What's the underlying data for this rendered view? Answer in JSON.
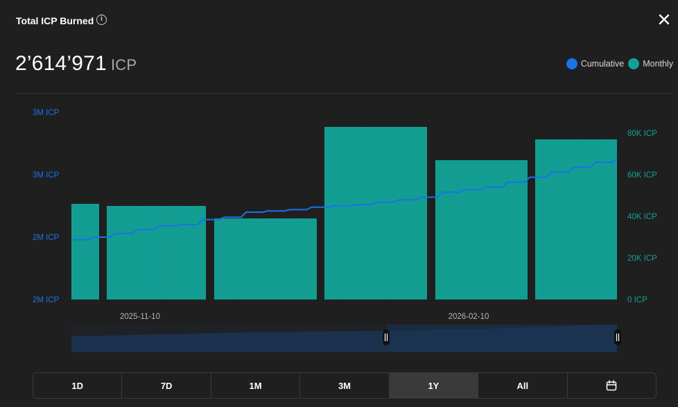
{
  "header": {
    "title": "Total ICP Burned",
    "info_icon": "info-icon",
    "close_icon": "close-icon"
  },
  "summary": {
    "value": "2’614’971",
    "unit": "ICP"
  },
  "legend": [
    {
      "label": "Cumulative",
      "color": "#1a73e8"
    },
    {
      "label": "Monthly",
      "color": "#14a195"
    }
  ],
  "range_selector": {
    "options": [
      "1D",
      "7D",
      "1M",
      "3M",
      "1Y",
      "All"
    ],
    "selected": "1Y",
    "calendar_icon": "calendar-icon"
  },
  "chart_data": {
    "type": "bar",
    "x_tick_labels": [
      "2025-11-10",
      "2026-02-10"
    ],
    "left_axis": {
      "ticks": [
        "2M ICP",
        "2M ICP",
        "3M ICP",
        "3M ICP"
      ],
      "color": "#1a73e8",
      "ylim": [
        2050000,
        2800000
      ]
    },
    "right_axis": {
      "ticks": [
        "0 ICP",
        "20K ICP",
        "40K ICP",
        "60K ICP",
        "80K ICP"
      ],
      "color": "#14a195",
      "ylim": [
        0,
        90000
      ]
    },
    "series": [
      {
        "name": "Monthly",
        "color": "#14a195",
        "axis": "right",
        "values": [
          46000,
          45000,
          39000,
          83000,
          67000,
          77000
        ]
      },
      {
        "name": "Cumulative",
        "color": "#1a73e8",
        "axis": "left",
        "values": [
          2290000,
          2300000,
          2315000,
          2330000,
          2345000,
          2350000,
          2370000,
          2380000,
          2400000,
          2405000,
          2410000,
          2420000,
          2425000,
          2430000,
          2440000,
          2450000,
          2460000,
          2480000,
          2490000,
          2500000,
          2520000,
          2540000,
          2560000,
          2580000,
          2600000,
          2614971
        ]
      }
    ],
    "grid": false
  }
}
